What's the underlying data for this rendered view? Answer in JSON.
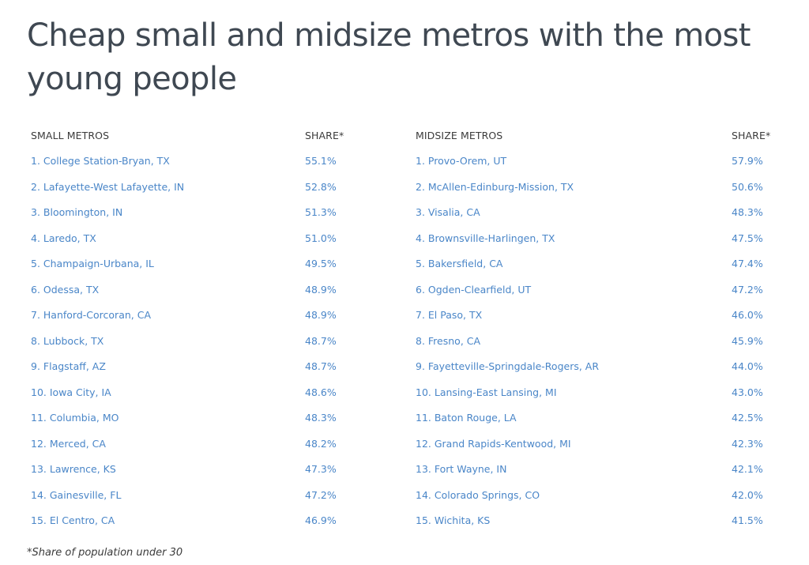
{
  "title": "Cheap small and midsize metros with the most young people",
  "table": {
    "headers": {
      "small_metros": "SMALL METROS",
      "small_share": "SHARE*",
      "midsize_metros": "MIDSIZE METROS",
      "midsize_share": "SHARE*"
    },
    "rows": [
      {
        "small_metro": "1. College Station-Bryan, TX",
        "small_share": "55.1%",
        "midsize_metro": "1. Provo-Orem, UT",
        "midsize_share": "57.9%"
      },
      {
        "small_metro": "2. Lafayette-West Lafayette, IN",
        "small_share": "52.8%",
        "midsize_metro": "2. McAllen-Edinburg-Mission, TX",
        "midsize_share": "50.6%"
      },
      {
        "small_metro": "3. Bloomington, IN",
        "small_share": "51.3%",
        "midsize_metro": "3. Visalia, CA",
        "midsize_share": "48.3%"
      },
      {
        "small_metro": "4. Laredo, TX",
        "small_share": "51.0%",
        "midsize_metro": "4. Brownsville-Harlingen, TX",
        "midsize_share": "47.5%"
      },
      {
        "small_metro": "5. Champaign-Urbana, IL",
        "small_share": "49.5%",
        "midsize_metro": "5. Bakersfield, CA",
        "midsize_share": "47.4%"
      },
      {
        "small_metro": "6. Odessa, TX",
        "small_share": "48.9%",
        "midsize_metro": "6. Ogden-Clearfield, UT",
        "midsize_share": "47.2%"
      },
      {
        "small_metro": "7. Hanford-Corcoran, CA",
        "small_share": "48.9%",
        "midsize_metro": "7. El Paso, TX",
        "midsize_share": "46.0%"
      },
      {
        "small_metro": "8. Lubbock, TX",
        "small_share": "48.7%",
        "midsize_metro": "8. Fresno, CA",
        "midsize_share": "45.9%"
      },
      {
        "small_metro": "9. Flagstaff, AZ",
        "small_share": "48.7%",
        "midsize_metro": "9. Fayetteville-Springdale-Rogers, AR",
        "midsize_share": "44.0%"
      },
      {
        "small_metro": "10. Iowa City, IA",
        "small_share": "48.6%",
        "midsize_metro": "10. Lansing-East Lansing, MI",
        "midsize_share": "43.0%"
      },
      {
        "small_metro": "11. Columbia, MO",
        "small_share": "48.3%",
        "midsize_metro": "11. Baton Rouge, LA",
        "midsize_share": "42.5%"
      },
      {
        "small_metro": "12. Merced, CA",
        "small_share": "48.2%",
        "midsize_metro": "12. Grand Rapids-Kentwood, MI",
        "midsize_share": "42.3%"
      },
      {
        "small_metro": "13. Lawrence, KS",
        "small_share": "47.3%",
        "midsize_metro": "13. Fort Wayne, IN",
        "midsize_share": "42.1%"
      },
      {
        "small_metro": "14. Gainesville, FL",
        "small_share": "47.2%",
        "midsize_metro": "14. Colorado Springs, CO",
        "midsize_share": "42.0%"
      },
      {
        "small_metro": "15. El Centro, CA",
        "small_share": "46.9%",
        "midsize_metro": "15. Wichita, KS",
        "midsize_share": "41.5%"
      }
    ]
  },
  "footnote": "*Share of population under 30",
  "colors": {
    "title": "#3f4852",
    "header_text": "#3b3b3b",
    "link_text": "#4a86c8",
    "background": "#ffffff"
  }
}
